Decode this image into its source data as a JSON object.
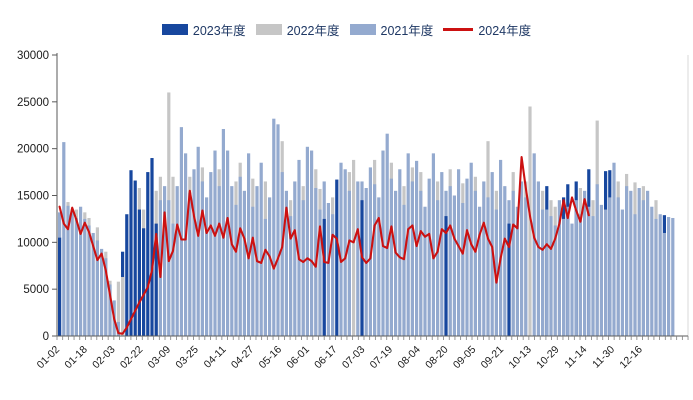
{
  "page": {
    "background": "#ffffff"
  },
  "chart_data": {
    "type": "bar+line",
    "title": "",
    "legend_position": "top-center",
    "series": [
      {
        "name": "2023年度",
        "type": "bar",
        "color": "#17479e"
      },
      {
        "name": "2022年度",
        "type": "bar",
        "color": "#c6c6c6"
      },
      {
        "name": "2021年度",
        "type": "bar",
        "color": "#94aacf"
      },
      {
        "name": "2024年度",
        "type": "line",
        "color": "#cc1111"
      }
    ],
    "y_axis": {
      "min": 0,
      "max": 30000,
      "tick_interval": 5000,
      "tick_labels": [
        "0",
        "5000",
        "10000",
        "15000",
        "20000",
        "25000",
        "30000"
      ]
    },
    "x_axis": {
      "tick_labels": [
        "01-02",
        "01-18",
        "02-03",
        "02-22",
        "03-09",
        "03-25",
        "04-11",
        "04-27",
        "05-16",
        "06-01",
        "06-17",
        "07-03",
        "07-19",
        "08-04",
        "08-20",
        "09-05",
        "09-21",
        "10-13",
        "10-29",
        "11-14",
        "11-30",
        "12-16"
      ]
    },
    "bars_format": "[front_height, front_series, back_height, back_series] per consecutive date slot Jan–Dec; L=2021年度, G=2022年度, N=2023年度",
    "bars": [
      [
        10500,
        "N",
        13200,
        "L"
      ],
      [
        20700,
        "L",
        0,
        ""
      ],
      [
        13900,
        "L",
        14300,
        "G"
      ],
      [
        13500,
        "L",
        0,
        ""
      ],
      [
        12600,
        "L",
        13500,
        "G"
      ],
      [
        13800,
        "L",
        0,
        ""
      ],
      [
        12500,
        "L",
        13200,
        "G"
      ],
      [
        11800,
        "L",
        12600,
        "G"
      ],
      [
        11000,
        "L",
        0,
        ""
      ],
      [
        10200,
        "L",
        11600,
        "G"
      ],
      [
        9300,
        "L",
        0,
        ""
      ],
      [
        8300,
        "L",
        9000,
        "G"
      ],
      [
        5500,
        "L",
        5900,
        "G"
      ],
      [
        3800,
        "L",
        0,
        ""
      ],
      [
        1500,
        "L",
        5800,
        "G"
      ],
      [
        6300,
        "G",
        9000,
        "N"
      ],
      [
        13000,
        "N",
        0,
        ""
      ],
      [
        17700,
        "N",
        0,
        ""
      ],
      [
        16600,
        "N",
        0,
        ""
      ],
      [
        13500,
        "N",
        15800,
        "G"
      ],
      [
        11500,
        "N",
        13500,
        "G"
      ],
      [
        17500,
        "N",
        0,
        ""
      ],
      [
        19000,
        "N",
        0,
        ""
      ],
      [
        12000,
        "N",
        15500,
        "G"
      ],
      [
        14500,
        "L",
        17000,
        "G"
      ],
      [
        16000,
        "L",
        0,
        ""
      ],
      [
        14500,
        "L",
        26000,
        "G"
      ],
      [
        12000,
        "L",
        17000,
        "G"
      ],
      [
        16000,
        "L",
        0,
        ""
      ],
      [
        22300,
        "L",
        0,
        ""
      ],
      [
        19500,
        "L",
        0,
        ""
      ],
      [
        15300,
        "L",
        17000,
        "G"
      ],
      [
        17800,
        "L",
        0,
        ""
      ],
      [
        20200,
        "L",
        0,
        ""
      ],
      [
        16500,
        "L",
        18000,
        "G"
      ],
      [
        14800,
        "L",
        0,
        ""
      ],
      [
        17500,
        "L",
        0,
        ""
      ],
      [
        19800,
        "L",
        0,
        ""
      ],
      [
        16000,
        "L",
        17800,
        "G"
      ],
      [
        22100,
        "L",
        0,
        ""
      ],
      [
        19800,
        "L",
        0,
        ""
      ],
      [
        16000,
        "L",
        0,
        ""
      ],
      [
        14000,
        "L",
        16500,
        "G"
      ],
      [
        17000,
        "L",
        18500,
        "G"
      ],
      [
        15500,
        "L",
        0,
        ""
      ],
      [
        19500,
        "L",
        0,
        ""
      ],
      [
        13800,
        "L",
        16800,
        "G"
      ],
      [
        16000,
        "L",
        0,
        ""
      ],
      [
        18500,
        "L",
        0,
        ""
      ],
      [
        12500,
        "L",
        16500,
        "G"
      ],
      [
        14800,
        "L",
        0,
        ""
      ],
      [
        23200,
        "L",
        0,
        ""
      ],
      [
        22600,
        "L",
        0,
        ""
      ],
      [
        17500,
        "L",
        20800,
        "G"
      ],
      [
        15500,
        "L",
        0,
        ""
      ],
      [
        12800,
        "L",
        14500,
        "G"
      ],
      [
        16500,
        "L",
        0,
        ""
      ],
      [
        18800,
        "L",
        0,
        ""
      ],
      [
        14500,
        "L",
        16000,
        "G"
      ],
      [
        20200,
        "L",
        0,
        ""
      ],
      [
        19800,
        "L",
        0,
        ""
      ],
      [
        15800,
        "L",
        17800,
        "G"
      ],
      [
        13500,
        "L",
        15700,
        "G"
      ],
      [
        12500,
        "N",
        16500,
        "L"
      ],
      [
        14200,
        "L",
        0,
        ""
      ],
      [
        13000,
        "L",
        14800,
        "G"
      ],
      [
        16700,
        "N",
        0,
        ""
      ],
      [
        18500,
        "L",
        0,
        ""
      ],
      [
        17800,
        "L",
        0,
        ""
      ],
      [
        15500,
        "L",
        17500,
        "G"
      ],
      [
        18800,
        "G",
        0,
        ""
      ],
      [
        16500,
        "L",
        0,
        ""
      ],
      [
        14500,
        "N",
        16500,
        "L"
      ],
      [
        15800,
        "L",
        0,
        ""
      ],
      [
        18000,
        "L",
        0,
        ""
      ],
      [
        16200,
        "L",
        18800,
        "G"
      ],
      [
        14800,
        "L",
        0,
        ""
      ],
      [
        19800,
        "L",
        0,
        ""
      ],
      [
        21600,
        "L",
        0,
        ""
      ],
      [
        16800,
        "L",
        18500,
        "G"
      ],
      [
        15500,
        "L",
        0,
        ""
      ],
      [
        17800,
        "L",
        0,
        ""
      ],
      [
        14000,
        "L",
        16000,
        "G"
      ],
      [
        19500,
        "L",
        0,
        ""
      ],
      [
        16500,
        "L",
        18000,
        "G"
      ],
      [
        18700,
        "L",
        0,
        ""
      ],
      [
        15500,
        "L",
        17500,
        "G"
      ],
      [
        13800,
        "L",
        0,
        ""
      ],
      [
        16800,
        "L",
        0,
        ""
      ],
      [
        19500,
        "L",
        0,
        ""
      ],
      [
        14500,
        "L",
        16500,
        "G"
      ],
      [
        17500,
        "L",
        0,
        ""
      ],
      [
        12800,
        "N",
        15500,
        "L"
      ],
      [
        16000,
        "L",
        17800,
        "G"
      ],
      [
        15000,
        "L",
        0,
        ""
      ],
      [
        17800,
        "L",
        0,
        ""
      ],
      [
        14200,
        "L",
        16300,
        "G"
      ],
      [
        16800,
        "L",
        0,
        ""
      ],
      [
        18500,
        "L",
        0,
        ""
      ],
      [
        15500,
        "L",
        17000,
        "G"
      ],
      [
        13800,
        "L",
        0,
        ""
      ],
      [
        16500,
        "L",
        0,
        ""
      ],
      [
        14800,
        "L",
        20800,
        "G"
      ],
      [
        17500,
        "L",
        0,
        ""
      ],
      [
        13500,
        "L",
        15500,
        "G"
      ],
      [
        18800,
        "L",
        0,
        ""
      ],
      [
        16000,
        "L",
        0,
        ""
      ],
      [
        12000,
        "N",
        14500,
        "L"
      ],
      [
        15500,
        "L",
        17500,
        "G"
      ],
      [
        13800,
        "L",
        0,
        ""
      ],
      [
        16500,
        "L",
        0,
        ""
      ],
      [
        14800,
        "L",
        16500,
        "G"
      ],
      [
        24500,
        "G",
        0,
        ""
      ],
      [
        19500,
        "L",
        0,
        ""
      ],
      [
        16500,
        "L",
        0,
        ""
      ],
      [
        13500,
        "L",
        15500,
        "G"
      ],
      [
        13500,
        "L",
        16000,
        "N"
      ],
      [
        12800,
        "L",
        14500,
        "G"
      ],
      [
        11800,
        "L",
        13800,
        "G"
      ],
      [
        14500,
        "L",
        0,
        ""
      ],
      [
        12500,
        "L",
        14800,
        "N"
      ],
      [
        13800,
        "L",
        16200,
        "N"
      ],
      [
        12000,
        "L",
        0,
        ""
      ],
      [
        14500,
        "L",
        16500,
        "N"
      ],
      [
        13000,
        "L",
        15800,
        "G"
      ],
      [
        15500,
        "L",
        0,
        ""
      ],
      [
        13800,
        "L",
        17800,
        "N"
      ],
      [
        12800,
        "L",
        14500,
        "G"
      ],
      [
        16200,
        "L",
        23000,
        "G"
      ],
      [
        14000,
        "L",
        0,
        ""
      ],
      [
        13500,
        "L",
        17600,
        "N"
      ],
      [
        14800,
        "L",
        17700,
        "N"
      ],
      [
        18500,
        "L",
        0,
        ""
      ],
      [
        14800,
        "L",
        16500,
        "G"
      ],
      [
        13500,
        "L",
        0,
        ""
      ],
      [
        16000,
        "L",
        17300,
        "G"
      ],
      [
        15500,
        "L",
        0,
        ""
      ],
      [
        13000,
        "L",
        16400,
        "G"
      ],
      [
        15800,
        "L",
        0,
        ""
      ],
      [
        14500,
        "L",
        16000,
        "G"
      ],
      [
        15500,
        "L",
        0,
        ""
      ],
      [
        13800,
        "L",
        0,
        ""
      ],
      [
        12500,
        "L",
        14500,
        "G"
      ],
      [
        13000,
        "L",
        0,
        ""
      ],
      [
        11000,
        "L",
        12900,
        "N"
      ],
      [
        12700,
        "L",
        0,
        ""
      ],
      [
        12600,
        "L",
        0,
        ""
      ]
    ],
    "line_2024": {
      "start_label": "01-02",
      "end_label": "11-14",
      "values": [
        13800,
        12000,
        11400,
        13700,
        12400,
        10900,
        12100,
        11100,
        9600,
        8100,
        8800,
        7000,
        4400,
        1800,
        300,
        250,
        900,
        1800,
        2700,
        3600,
        4400,
        5200,
        7000,
        10900,
        6300,
        13200,
        8000,
        9100,
        11900,
        10300,
        10300,
        15500,
        12800,
        10700,
        13400,
        11000,
        11800,
        10700,
        12000,
        10500,
        12600,
        9800,
        9000,
        11500,
        10400,
        8300,
        10500,
        8000,
        7800,
        9200,
        8500,
        7200,
        8300,
        9500,
        13700,
        10400,
        11300,
        8200,
        7900,
        8300,
        8000,
        7400,
        11700,
        7900,
        7800,
        10800,
        10400,
        7900,
        8300,
        10200,
        10000,
        11400,
        8400,
        7800,
        8300,
        11800,
        12600,
        9600,
        9400,
        11700,
        8900,
        8400,
        8200,
        11400,
        11800,
        9600,
        11200,
        10600,
        10900,
        8300,
        9000,
        11400,
        11000,
        11800,
        10400,
        9600,
        8800,
        11300,
        9800,
        9000,
        10800,
        12100,
        10400,
        9500,
        5700,
        8300,
        10400,
        9500,
        11900,
        11500,
        19100,
        15800,
        12800,
        10500,
        9500,
        9200,
        9800,
        9300,
        10400,
        12000,
        14500,
        12600,
        14800,
        13400,
        12200,
        14600,
        12900
      ]
    },
    "style": {
      "axis_color": "#595959",
      "tick_color": "#7f7f7f",
      "plot_border_right": "#d9d9d9",
      "tick_label_color": "#1a1a1a",
      "legend_text_color": "#1f3864"
    }
  }
}
